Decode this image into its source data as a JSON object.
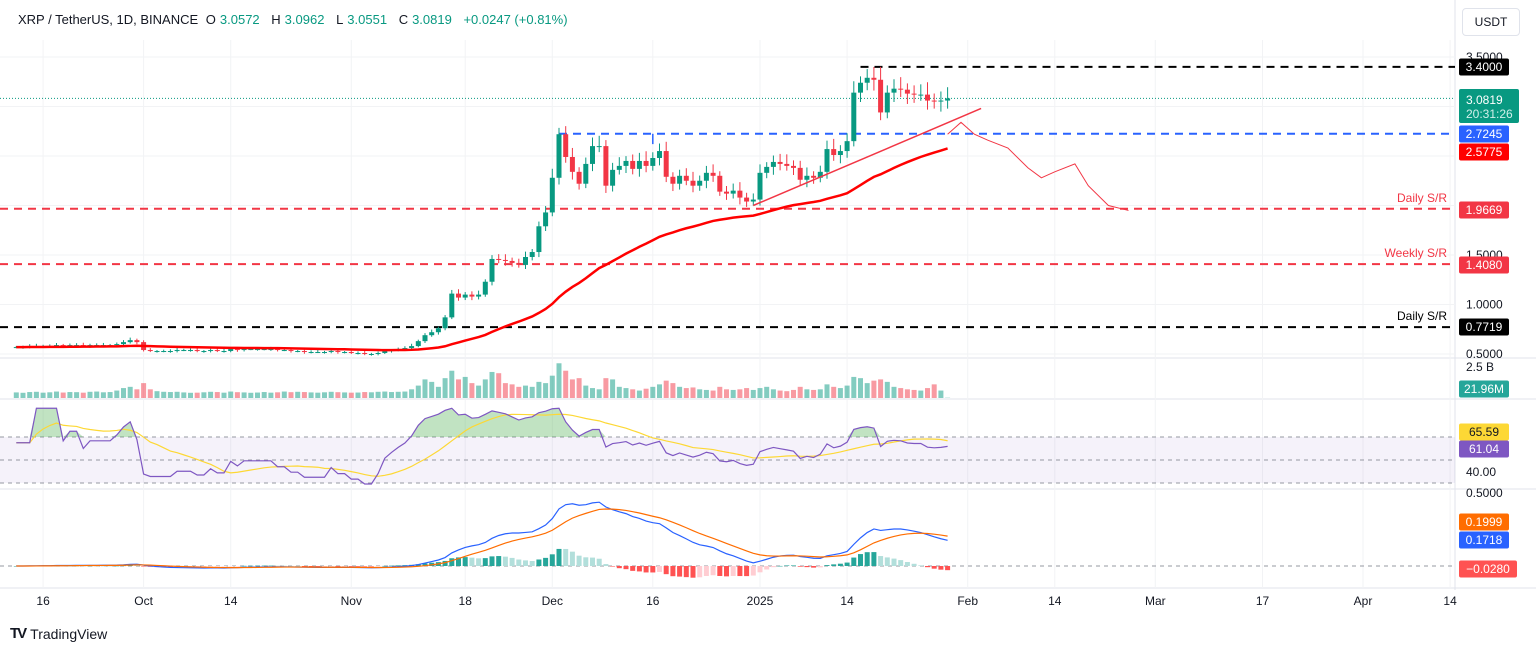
{
  "header": {
    "symbol": "XRP / TetherUS, 1D, BINANCE",
    "o_label": "O",
    "open": "3.0572",
    "h_label": "H",
    "high": "3.0962",
    "l_label": "L",
    "low": "3.0551",
    "c_label": "C",
    "close": "3.0819",
    "change": "+0.0247 (+0.81%)"
  },
  "currency": "USDT",
  "brand": "TradingView",
  "colors": {
    "up": "#089981",
    "down": "#f23645",
    "ma": "#ff0000",
    "rsi": "#7e57c2",
    "rsi_ma": "#fdd835",
    "macd": "#2962ff",
    "signal": "#ff6d00",
    "level_blue": "#2962ff",
    "level_red": "#f23645",
    "level_black": "#000000"
  },
  "chart_data": {
    "type": "candlestick",
    "start_date": "2024-09-12",
    "close": [
      0.57,
      0.57,
      0.58,
      0.58,
      0.58,
      0.58,
      0.59,
      0.58,
      0.59,
      0.59,
      0.58,
      0.59,
      0.59,
      0.59,
      0.59,
      0.6,
      0.62,
      0.64,
      0.62,
      0.54,
      0.53,
      0.53,
      0.53,
      0.53,
      0.54,
      0.54,
      0.54,
      0.53,
      0.53,
      0.54,
      0.53,
      0.53,
      0.55,
      0.54,
      0.55,
      0.55,
      0.55,
      0.55,
      0.55,
      0.54,
      0.54,
      0.53,
      0.53,
      0.52,
      0.52,
      0.52,
      0.52,
      0.53,
      0.52,
      0.52,
      0.51,
      0.51,
      0.5,
      0.5,
      0.51,
      0.53,
      0.54,
      0.55,
      0.56,
      0.58,
      0.63,
      0.69,
      0.72,
      0.76,
      0.87,
      1.11,
      1.07,
      1.1,
      1.08,
      1.1,
      1.23,
      1.46,
      1.45,
      1.44,
      1.42,
      1.4,
      1.48,
      1.53,
      1.79,
      1.93,
      2.28,
      2.72,
      2.49,
      2.34,
      2.22,
      2.42,
      2.6,
      2.6,
      2.2,
      2.36,
      2.4,
      2.45,
      2.37,
      2.45,
      2.4,
      2.48,
      2.55,
      2.29,
      2.22,
      2.3,
      2.25,
      2.2,
      2.25,
      2.33,
      2.3,
      2.14,
      2.12,
      2.15,
      2.08,
      2.04,
      2.06,
      2.33,
      2.39,
      2.44,
      2.42,
      2.4,
      2.38,
      2.26,
      2.3,
      2.28,
      2.34,
      2.57,
      2.51,
      2.55,
      2.65,
      3.14,
      3.24,
      3.29,
      3.27,
      2.94,
      3.14,
      3.18,
      3.17,
      3.13,
      3.12,
      3.12,
      3.06,
      3.05,
      3.06,
      3.0819
    ],
    "volume_millions": [
      450,
      420,
      480,
      500,
      430,
      460,
      520,
      440,
      480,
      470,
      430,
      500,
      520,
      460,
      480,
      600,
      800,
      900,
      700,
      1200,
      700,
      550,
      500,
      480,
      500,
      450,
      420,
      430,
      460,
      500,
      480,
      430,
      520,
      470,
      450,
      420,
      440,
      480,
      430,
      460,
      520,
      470,
      500,
      480,
      450,
      430,
      460,
      500,
      470,
      450,
      430,
      440,
      480,
      460,
      500,
      520,
      480,
      500,
      520,
      700,
      1000,
      1500,
      1300,
      900,
      1600,
      2200,
      1500,
      1700,
      1200,
      1000,
      1500,
      2100,
      2000,
      1200,
      1100,
      900,
      1000,
      900,
      1300,
      1200,
      1800,
      2800,
      2200,
      1500,
      1600,
      1000,
      800,
      700,
      1600,
      1500,
      900,
      800,
      700,
      600,
      750,
      900,
      1100,
      1400,
      1200,
      900,
      800,
      850,
      700,
      650,
      600,
      900,
      700,
      650,
      700,
      800,
      650,
      800,
      900,
      700,
      600,
      550,
      650,
      900,
      700,
      650,
      700,
      1100,
      900,
      800,
      1000,
      1700,
      1600,
      1200,
      1400,
      1500,
      1300,
      900,
      800,
      700,
      650,
      600,
      800,
      1100,
      600,
      21.96
    ],
    "price_ticks": [
      "3.5000",
      "1.5000",
      "1.0000",
      "0.5000"
    ],
    "time_labels": [
      {
        "text": "16",
        "date": "2024-09-16"
      },
      {
        "text": "Oct",
        "date": "2024-10-01"
      },
      {
        "text": "14",
        "date": "2024-10-14"
      },
      {
        "text": "Nov",
        "date": "2024-11-01"
      },
      {
        "text": "18",
        "date": "2024-11-18"
      },
      {
        "text": "Dec",
        "date": "2024-12-01"
      },
      {
        "text": "16",
        "date": "2024-12-16"
      },
      {
        "text": "2025",
        "date": "2025-01-01"
      },
      {
        "text": "14",
        "date": "2025-01-14"
      },
      {
        "text": "Feb",
        "date": "2025-02-01"
      },
      {
        "text": "14",
        "date": "2025-02-14"
      },
      {
        "text": "Mar",
        "date": "2025-03-01"
      },
      {
        "text": "17",
        "date": "2025-03-17"
      },
      {
        "text": "Apr",
        "date": "2025-04-01"
      },
      {
        "text": "14",
        "date": "2025-04-14"
      }
    ],
    "levels": [
      {
        "price": 3.4,
        "label": "3.4000",
        "color": "#000000",
        "from": "2025-01-16",
        "text": ""
      },
      {
        "price": 2.7245,
        "label": "2.7245",
        "color": "#2962ff",
        "from": "2024-12-02",
        "text": ""
      },
      {
        "price": 1.9669,
        "label": "1.9669",
        "color": "#f23645",
        "from": null,
        "text": "Daily S/R"
      },
      {
        "price": 1.408,
        "label": "1.4080",
        "color": "#f23645",
        "from": null,
        "text": "Weekly S/R"
      },
      {
        "price": 0.7719,
        "label": "0.7719",
        "color": "#000000",
        "from": null,
        "text": "Daily S/R"
      }
    ],
    "last_price": {
      "label": "3.0819",
      "countdown": "20:31:26"
    },
    "ma_label": "2.5775",
    "trendline": [
      {
        "date": "2024-12-31",
        "price": 2.0
      },
      {
        "date": "2025-02-03",
        "price": 2.98
      }
    ],
    "projection": [
      {
        "date": "2025-01-29",
        "price": 2.72
      },
      {
        "date": "2025-01-31",
        "price": 2.84
      },
      {
        "date": "2025-02-02",
        "price": 2.72
      },
      {
        "date": "2025-02-04",
        "price": 2.66
      },
      {
        "date": "2025-02-07",
        "price": 2.58
      },
      {
        "date": "2025-02-10",
        "price": 2.38
      },
      {
        "date": "2025-02-12",
        "price": 2.28
      },
      {
        "date": "2025-02-14",
        "price": 2.34
      },
      {
        "date": "2025-02-17",
        "price": 2.42
      },
      {
        "date": "2025-02-19",
        "price": 2.2
      },
      {
        "date": "2025-02-22",
        "price": 2.0
      },
      {
        "date": "2025-02-25",
        "price": 1.95
      }
    ],
    "volume": {
      "tick": "2.5 B",
      "last": "21.96M"
    },
    "rsi": {
      "value": "61.04",
      "ma": "65.59",
      "tick": "40.00",
      "upper": 70,
      "middle": 50,
      "lower": 30
    },
    "macd": {
      "signal": "0.1999",
      "macd": "0.1718",
      "hist": "−0.0280",
      "tick": "0.5000"
    }
  }
}
